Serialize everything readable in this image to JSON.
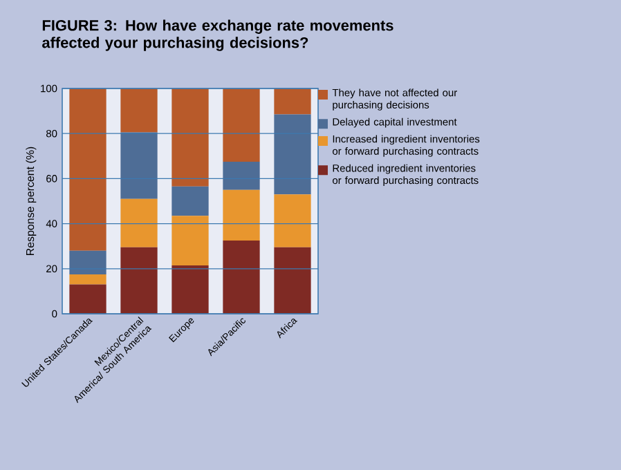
{
  "chart_data": {
    "type": "bar",
    "stacked": true,
    "title": "FIGURE 3: How have exchange rate movements affected your purchasing decisions?",
    "ylabel": "Response percent (%)",
    "categories": [
      "United States/Canada",
      "Mexico/Central America/ South America",
      "Europe",
      "Asia/Pacific",
      "Africa"
    ],
    "series": [
      {
        "name": "Reduced ingredient inventories or forward purchasing contracts",
        "color": "#7f2a24",
        "values": [
          13,
          29.5,
          21.5,
          32.5,
          29.5
        ]
      },
      {
        "name": "Increased ingredient inventories or forward purchasing contracts",
        "color": "#e8962e",
        "values": [
          4.5,
          21.5,
          22,
          22.5,
          23.5
        ]
      },
      {
        "name": "Delayed capital investment",
        "color": "#4e6d96",
        "values": [
          10.5,
          29.5,
          13,
          12.5,
          35.5
        ]
      },
      {
        "name": "They have not affected our purchasing decisions",
        "color": "#b85a2a",
        "values": [
          72,
          19.5,
          43.5,
          32.5,
          11.5
        ]
      }
    ],
    "ylim": [
      0,
      100
    ],
    "yticks": [
      0,
      20,
      40,
      60,
      80,
      100
    ],
    "grid": "y",
    "legend": "right"
  }
}
